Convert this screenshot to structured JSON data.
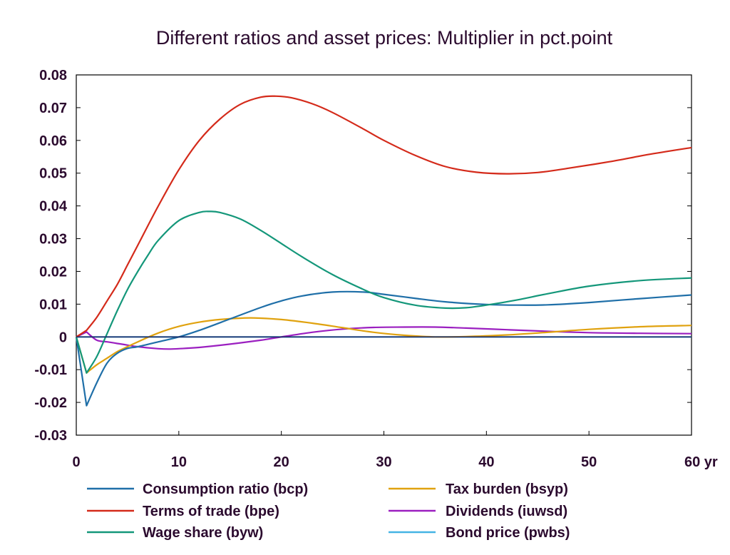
{
  "chart_data": {
    "type": "line",
    "title": "Different ratios and asset prices: Multiplier in pct.point",
    "xlabel": "",
    "ylabel": "",
    "xlim": [
      0,
      60
    ],
    "ylim": [
      -0.03,
      0.08
    ],
    "x_ticks": [
      "0",
      "10",
      "20",
      "30",
      "40",
      "50",
      "60 yr"
    ],
    "x_tick_values": [
      0,
      10,
      20,
      30,
      40,
      50,
      60
    ],
    "y_ticks": [
      "0.08",
      "0.07",
      "0.06",
      "0.05",
      "0.04",
      "0.03",
      "0.02",
      "0.01",
      "0",
      "-0.01",
      "-0.02",
      "-0.03"
    ],
    "y_tick_values": [
      0.08,
      0.07,
      0.06,
      0.05,
      0.04,
      0.03,
      0.02,
      0.01,
      0,
      -0.01,
      -0.02,
      -0.03
    ],
    "grid": false,
    "legend_position": "bottom",
    "series": [
      {
        "name": "Consumption ratio (bcp)",
        "color": "#1f6fa8",
        "x": [
          0,
          1,
          2,
          3,
          4,
          5,
          6,
          8,
          10,
          12,
          15,
          18,
          20,
          22,
          25,
          28,
          30,
          33,
          36,
          40,
          43,
          46,
          50,
          55,
          60
        ],
        "y": [
          0,
          -0.021,
          -0.014,
          -0.008,
          -0.005,
          -0.0035,
          -0.003,
          -0.0015,
          0,
          0.002,
          0.0055,
          0.009,
          0.011,
          0.0125,
          0.0137,
          0.0137,
          0.013,
          0.0118,
          0.0107,
          0.0099,
          0.0097,
          0.0098,
          0.0105,
          0.0117,
          0.0128
        ]
      },
      {
        "name": "Terms of trade (bpe)",
        "color": "#d42a1a",
        "x": [
          0,
          1,
          2,
          3,
          4,
          5,
          6,
          8,
          10,
          12,
          14,
          16,
          18,
          19.5,
          21,
          23,
          25,
          28,
          30,
          33,
          36,
          39,
          42,
          45,
          48,
          52,
          56,
          60
        ],
        "y": [
          0,
          0.002,
          0.006,
          0.011,
          0.016,
          0.022,
          0.028,
          0.04,
          0.051,
          0.06,
          0.0665,
          0.071,
          0.0732,
          0.0735,
          0.073,
          0.0712,
          0.0685,
          0.0635,
          0.06,
          0.0555,
          0.052,
          0.0503,
          0.0498,
          0.0502,
          0.0515,
          0.0535,
          0.0558,
          0.0578
        ]
      },
      {
        "name": "Wage share (byw)",
        "color": "#14977a",
        "x": [
          0,
          1,
          2,
          3,
          4,
          5,
          6,
          7,
          8,
          10,
          12,
          13,
          14,
          16,
          18,
          20,
          22,
          25,
          28,
          30,
          33,
          36,
          38,
          40,
          43,
          46,
          50,
          55,
          60
        ],
        "y": [
          0,
          -0.011,
          -0.006,
          0.001,
          0.008,
          0.0145,
          0.02,
          0.025,
          0.0295,
          0.0355,
          0.038,
          0.0383,
          0.038,
          0.036,
          0.0325,
          0.0285,
          0.0245,
          0.019,
          0.0145,
          0.012,
          0.0097,
          0.0088,
          0.0089,
          0.0097,
          0.0113,
          0.0132,
          0.0155,
          0.0172,
          0.018
        ]
      },
      {
        "name": "Tax burden (bsyp)",
        "color": "#e0a20f",
        "x": [
          0,
          1,
          2,
          3,
          4,
          5,
          6,
          8,
          10,
          12,
          14,
          17,
          20,
          23,
          26,
          29,
          32,
          35,
          38,
          42,
          46,
          50,
          55,
          60
        ],
        "y": [
          0,
          -0.011,
          -0.0085,
          -0.0065,
          -0.0045,
          -0.003,
          -0.0015,
          0.0012,
          0.0032,
          0.0045,
          0.0053,
          0.0058,
          0.0053,
          0.0042,
          0.0028,
          0.0014,
          0.0005,
          0.0,
          0.0001,
          0.0006,
          0.0014,
          0.0023,
          0.0031,
          0.0035
        ]
      },
      {
        "name": "Dividends (iuwsd)",
        "color": "#9b1fc0",
        "x": [
          0,
          1,
          2,
          3,
          4,
          5,
          6,
          8,
          9,
          10,
          12,
          15,
          18,
          20,
          23,
          26,
          29,
          32,
          35,
          38,
          42,
          46,
          50,
          55,
          60
        ],
        "y": [
          0,
          0.0015,
          -0.001,
          -0.0015,
          -0.002,
          -0.0025,
          -0.003,
          -0.0036,
          -0.0037,
          -0.0036,
          -0.0032,
          -0.0022,
          -0.001,
          0.0,
          0.0014,
          0.0024,
          0.0029,
          0.003,
          0.003,
          0.0027,
          0.0022,
          0.0017,
          0.0013,
          0.0011,
          0.001
        ]
      },
      {
        "name": "Bond price (pwbs)",
        "color": "#45b4e4",
        "x": [
          0,
          60
        ],
        "y": [
          0,
          0
        ]
      }
    ],
    "baseline": {
      "y": 0,
      "color": "#1b2a66"
    }
  }
}
